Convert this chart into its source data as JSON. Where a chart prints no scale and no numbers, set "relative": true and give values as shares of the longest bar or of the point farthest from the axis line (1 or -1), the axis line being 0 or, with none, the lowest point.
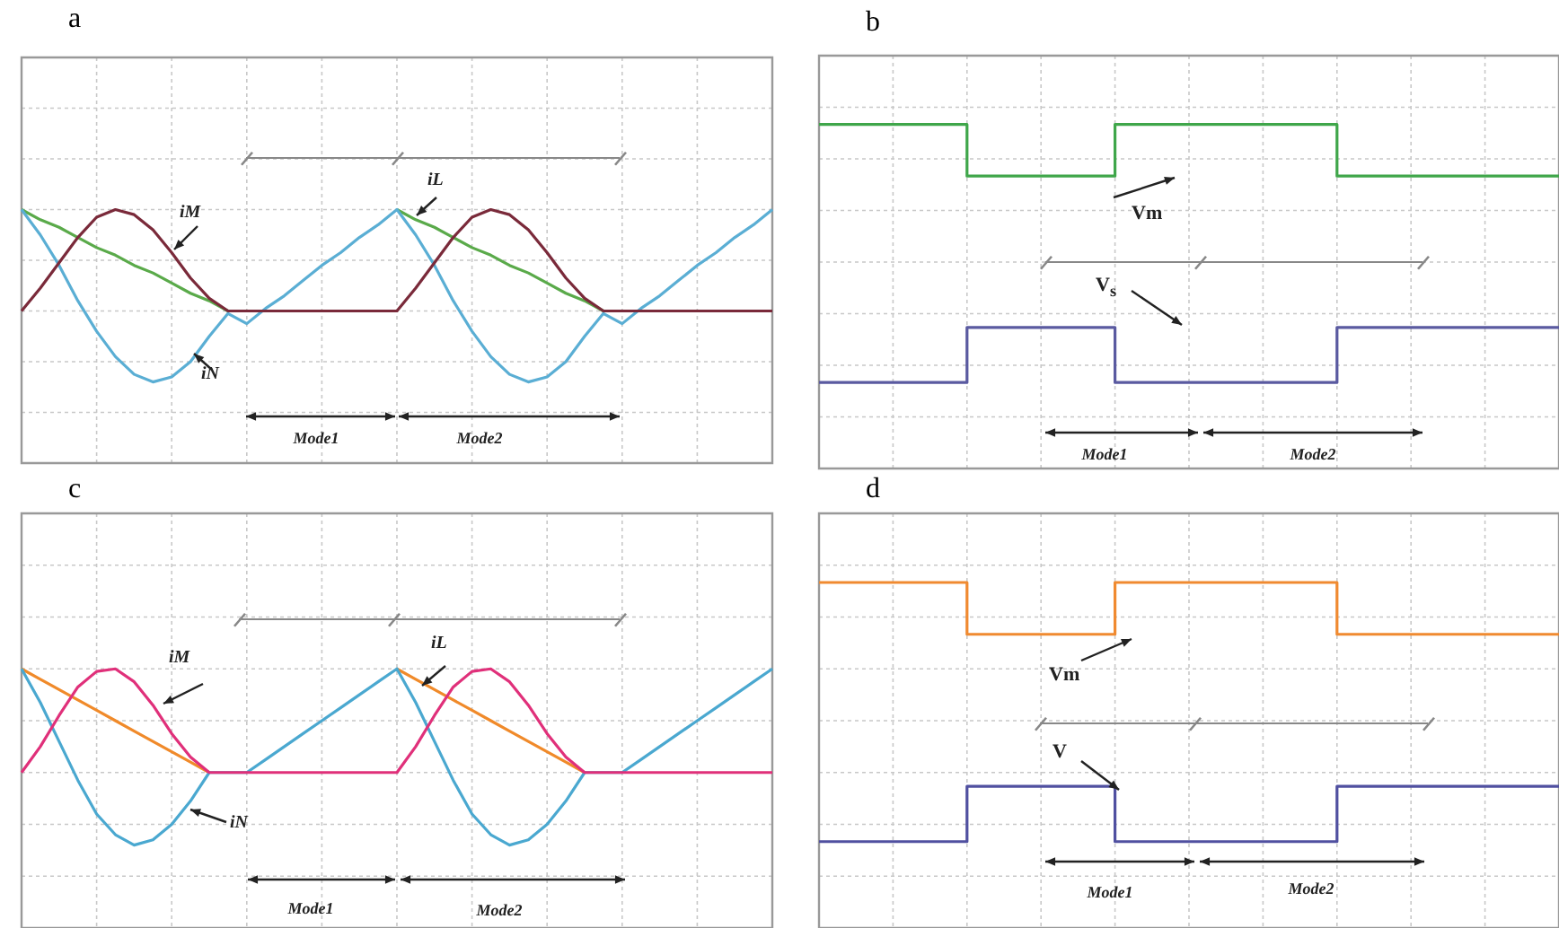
{
  "chart_data": [
    {
      "type": "line",
      "title": "a",
      "relative": true,
      "grid": true,
      "legend": false,
      "marker": "none",
      "categories": [
        null,
        null,
        null,
        null,
        null,
        null,
        null,
        null,
        null,
        null,
        null,
        null,
        null,
        null,
        null,
        null,
        null,
        null,
        null,
        null,
        null,
        null,
        null,
        null,
        null,
        null,
        null,
        null,
        null,
        null,
        null,
        null,
        null,
        null,
        null,
        null,
        null,
        null,
        null,
        null,
        null
      ],
      "series": [
        {
          "name": "iM",
          "color": "#7a2a3a",
          "values": [
            0.6,
            0.69,
            0.79,
            0.89,
            0.97,
            1,
            0.98,
            0.92,
            0.83,
            0.73,
            0.65,
            0.6,
            0.6,
            0.6,
            0.6,
            0.6,
            0.6,
            0.6,
            0.6,
            0.6,
            0.6,
            0.69,
            0.79,
            0.89,
            0.97,
            1,
            0.98,
            0.92,
            0.83,
            0.73,
            0.65,
            0.6,
            0.6,
            0.6,
            0.6,
            0.6,
            0.6,
            0.6,
            0.6,
            0.6,
            0.6
          ]
        },
        {
          "name": "iN",
          "color": "#5aaed4",
          "values": [
            1,
            0.9,
            0.78,
            0.64,
            0.52,
            0.42,
            0.35,
            0.32,
            0.34,
            0.4,
            0.5,
            0.59,
            0.55,
            0.61,
            0.66,
            0.72,
            0.78,
            0.83,
            0.89,
            0.94,
            1,
            0.9,
            0.78,
            0.64,
            0.52,
            0.42,
            0.35,
            0.32,
            0.34,
            0.4,
            0.5,
            0.59,
            0.55,
            0.61,
            0.66,
            0.72,
            0.78,
            0.83,
            0.89,
            0.94,
            1
          ]
        },
        {
          "name": "iL",
          "color": "#5aaa4a",
          "values": [
            1,
            0.96,
            0.93,
            0.89,
            0.85,
            0.82,
            0.78,
            0.75,
            0.71,
            0.67,
            0.64,
            0.6,
            null,
            null,
            null,
            null,
            null,
            null,
            null,
            null,
            1,
            0.96,
            0.93,
            0.89,
            0.85,
            0.82,
            0.78,
            0.75,
            0.71,
            0.67,
            0.64,
            0.6,
            null,
            null,
            null,
            null,
            null,
            null,
            null,
            null,
            null
          ]
        }
      ],
      "annotations": [
        "Mode1",
        "Mode2"
      ]
    },
    {
      "type": "step",
      "title": "b",
      "relative": true,
      "grid": true,
      "legend": false,
      "marker": "none",
      "categories": [
        null,
        null,
        null,
        null,
        null,
        null,
        null,
        null,
        null,
        null,
        null
      ],
      "series": [
        {
          "name": "Vm",
          "color": "#3fa64a",
          "values": [
            1,
            1,
            1,
            0.85,
            0.85,
            1,
            1,
            1,
            0.85,
            0.85,
            0.85
          ]
        },
        {
          "name": "V$_{s}$",
          "color": "#5a5aa0",
          "values": [
            0.25,
            0.25,
            0.25,
            0.41,
            0.41,
            0.25,
            0.25,
            0.25,
            0.41,
            0.41,
            0.41
          ]
        }
      ],
      "annotations": [
        "Mode1",
        "Mode2"
      ]
    },
    {
      "type": "line",
      "title": "c",
      "relative": true,
      "grid": true,
      "legend": false,
      "marker": "none",
      "categories": [
        null,
        null,
        null,
        null,
        null,
        null,
        null,
        null,
        null,
        null,
        null,
        null,
        null,
        null,
        null,
        null,
        null,
        null,
        null,
        null,
        null,
        null,
        null,
        null,
        null,
        null,
        null,
        null,
        null,
        null,
        null,
        null,
        null,
        null,
        null,
        null,
        null,
        null,
        null,
        null,
        null
      ],
      "series": [
        {
          "name": "iM",
          "color": "#e0307a",
          "values": [
            0.6,
            0.7,
            0.82,
            0.93,
            0.99,
            1,
            0.95,
            0.86,
            0.75,
            0.66,
            0.6,
            0.6,
            0.6,
            0.6,
            0.6,
            0.6,
            0.6,
            0.6,
            0.6,
            0.6,
            0.6,
            0.7,
            0.82,
            0.93,
            0.99,
            1,
            0.95,
            0.86,
            0.75,
            0.66,
            0.6,
            0.6,
            0.6,
            0.6,
            0.6,
            0.6,
            0.6,
            0.6,
            0.6,
            0.6,
            0.6
          ]
        },
        {
          "name": "iN",
          "color": "#4aa8d0",
          "values": [
            1,
            0.87,
            0.72,
            0.57,
            0.44,
            0.36,
            0.32,
            0.34,
            0.4,
            0.49,
            0.6,
            0.6,
            0.6,
            0.65,
            0.7,
            0.75,
            0.8,
            0.85,
            0.9,
            0.95,
            1,
            0.87,
            0.72,
            0.57,
            0.44,
            0.36,
            0.32,
            0.34,
            0.4,
            0.49,
            0.6,
            0.6,
            0.6,
            0.65,
            0.7,
            0.75,
            0.8,
            0.85,
            0.9,
            0.95,
            1
          ]
        },
        {
          "name": "iL",
          "color": "#f08a2a",
          "values": [
            1,
            0.96,
            0.92,
            0.88,
            0.84,
            0.8,
            0.76,
            0.72,
            0.68,
            0.64,
            0.6,
            null,
            null,
            null,
            null,
            null,
            null,
            null,
            null,
            null,
            1,
            0.96,
            0.92,
            0.88,
            0.84,
            0.8,
            0.76,
            0.72,
            0.68,
            0.64,
            0.6,
            null,
            null,
            null,
            null,
            null,
            null,
            null,
            null,
            null,
            null
          ]
        }
      ],
      "annotations": [
        "Mode1",
        "Mode2"
      ]
    },
    {
      "type": "step",
      "title": "d",
      "relative": true,
      "grid": true,
      "legend": false,
      "marker": "none",
      "categories": [
        null,
        null,
        null,
        null,
        null,
        null,
        null,
        null,
        null,
        null,
        null
      ],
      "series": [
        {
          "name": "Vm",
          "color": "#f08a30",
          "values": [
            1,
            1,
            1,
            0.85,
            0.85,
            1,
            1,
            1,
            0.85,
            0.85,
            0.85
          ]
        },
        {
          "name": "V",
          "color": "#5050a0",
          "values": [
            0.25,
            0.25,
            0.25,
            0.41,
            0.41,
            0.25,
            0.25,
            0.25,
            0.41,
            0.41,
            0.41
          ]
        }
      ],
      "annotations": [
        "Mode1",
        "Mode2"
      ]
    }
  ]
}
